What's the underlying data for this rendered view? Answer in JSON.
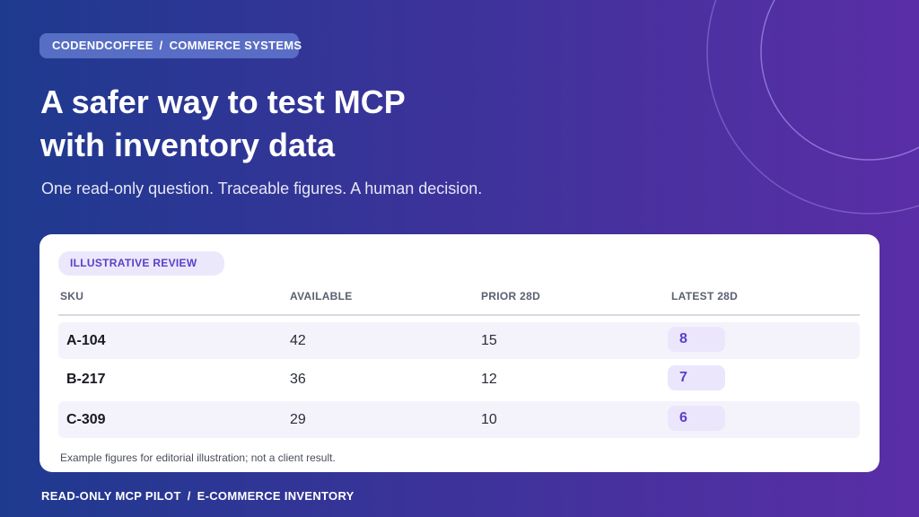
{
  "breadcrumb": {
    "brand": "CODENDCOFFEE",
    "separator": "/",
    "section": "COMMERCE SYSTEMS"
  },
  "headline": {
    "line1": "A safer way to test MCP",
    "line2": "with inventory data"
  },
  "subtitle": "One read-only question. Traceable figures. A human decision.",
  "card": {
    "pill": "ILLUSTRATIVE REVIEW",
    "columns": [
      "SKU",
      "AVAILABLE",
      "PRIOR 28D",
      "LATEST 28D"
    ],
    "rows": [
      {
        "sku": "A-104",
        "available": "42",
        "prior": "15",
        "latest": "8"
      },
      {
        "sku": "B-217",
        "available": "36",
        "prior": "12",
        "latest": "7"
      },
      {
        "sku": "C-309",
        "available": "29",
        "prior": "10",
        "latest": "6"
      }
    ],
    "note": "Example figures for editorial illustration; not a client result."
  },
  "footer": {
    "left": "READ-ONLY MCP PILOT",
    "separator": "/",
    "right": "E-COMMERCE INVENTORY"
  },
  "colors": {
    "accent": "#5b3fc8",
    "gradient_start": "#1e3a8f",
    "gradient_end": "#5a2ea6"
  }
}
